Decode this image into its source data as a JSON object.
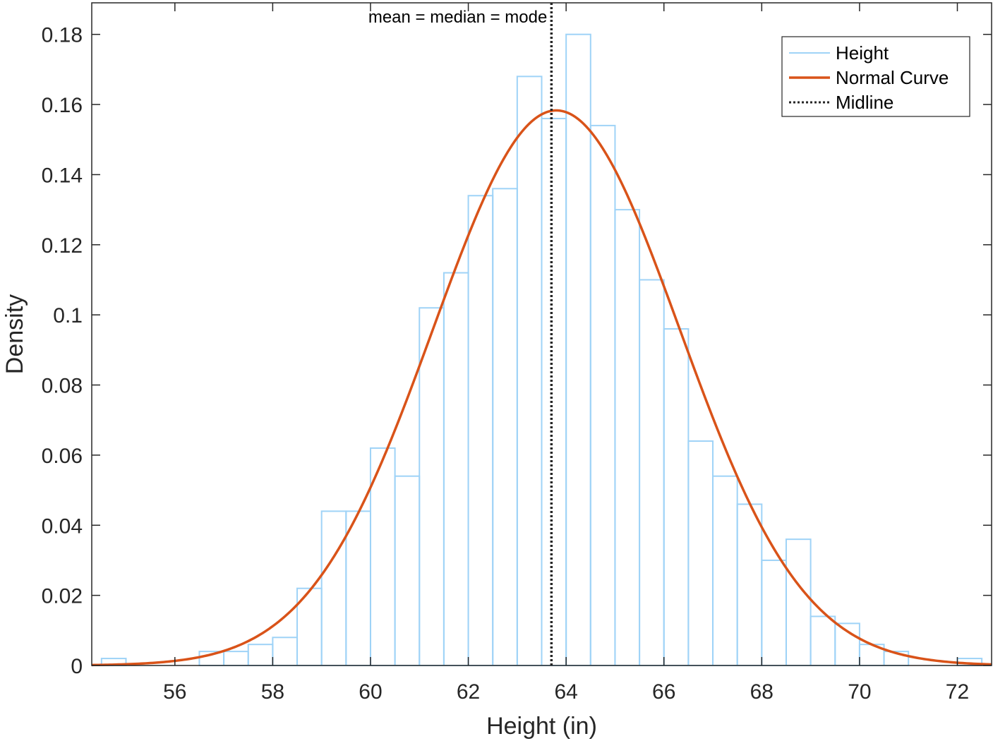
{
  "chart_data": {
    "type": "histogram",
    "xlabel": "Height (in)",
    "ylabel": "Density",
    "xlim": [
      54.3,
      72.7
    ],
    "ylim": [
      0,
      0.189
    ],
    "xticks": [
      56,
      58,
      60,
      62,
      64,
      66,
      68,
      70,
      72
    ],
    "xtick_labels": [
      "56",
      "58",
      "60",
      "62",
      "64",
      "66",
      "68",
      "70",
      "72"
    ],
    "yticks": [
      0,
      0.02,
      0.04,
      0.06,
      0.08,
      0.1,
      0.12,
      0.14,
      0.16,
      0.18
    ],
    "ytick_labels": [
      "0",
      "0.02",
      "0.04",
      "0.06",
      "0.08",
      "0.1",
      "0.12",
      "0.14",
      "0.16",
      "0.18"
    ],
    "grid": false,
    "legend_position": "top-right",
    "histogram": {
      "name": "Height",
      "color": "#9fd3f7",
      "bin_edges": [
        54.5,
        55.0,
        55.5,
        56.0,
        56.5,
        57.0,
        57.5,
        58.0,
        58.5,
        59.0,
        59.5,
        60.0,
        60.5,
        61.0,
        61.5,
        62.0,
        62.5,
        63.0,
        63.5,
        64.0,
        64.5,
        65.0,
        65.5,
        66.0,
        66.5,
        67.0,
        67.5,
        68.0,
        68.5,
        69.0,
        69.5,
        70.0,
        70.5,
        71.0,
        71.5,
        72.0,
        72.5
      ],
      "densities": [
        0.002,
        0,
        0,
        0,
        0.004,
        0.004,
        0.006,
        0.008,
        0.022,
        0.044,
        0.044,
        0.062,
        0.054,
        0.102,
        0.112,
        0.134,
        0.136,
        0.168,
        0.156,
        0.18,
        0.154,
        0.13,
        0.11,
        0.096,
        0.064,
        0.054,
        0.046,
        0.03,
        0.036,
        0.014,
        0.012,
        0.006,
        0.004,
        0,
        0,
        0.002
      ]
    },
    "normal_curve": {
      "name": "Normal Curve",
      "color": "#d95319",
      "mean": 63.8,
      "std": 2.52
    },
    "midline": {
      "name": "Midline",
      "color": "#262626",
      "x": 63.7
    },
    "annotation": "mean = median = mode",
    "legend": {
      "entries": [
        "Height",
        "Normal Curve",
        "Midline"
      ]
    }
  }
}
